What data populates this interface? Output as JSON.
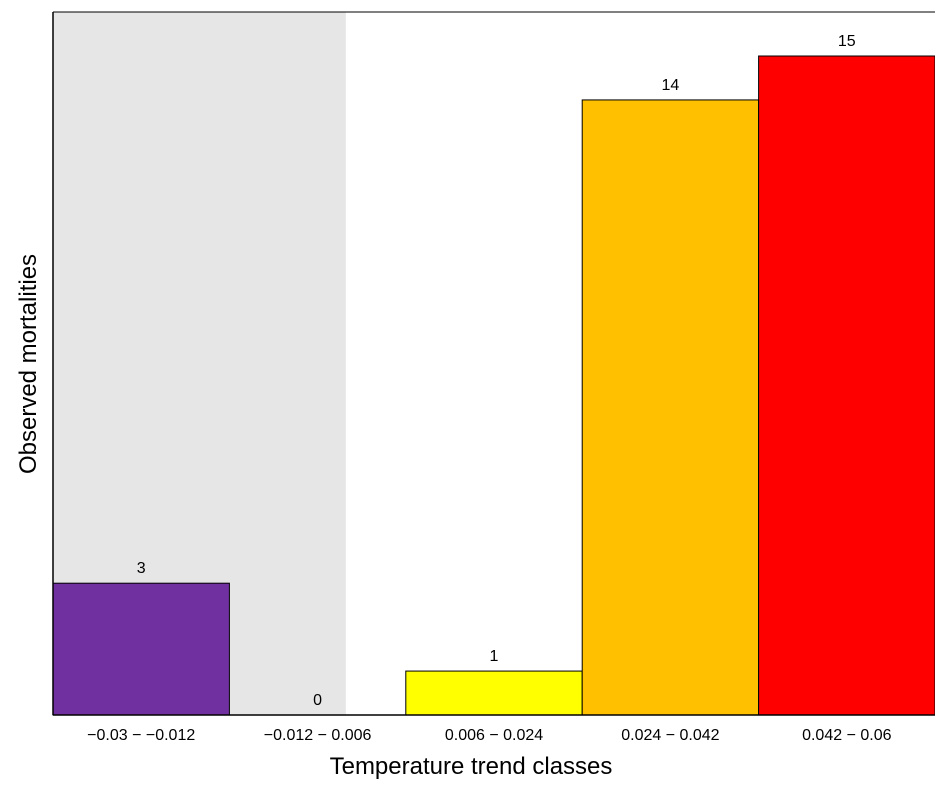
{
  "chart_data": {
    "type": "bar",
    "categories": [
      "−0.03  −  −0.012",
      "−0.012  −  0.006",
      "0.006  −  0.024",
      "0.024  −  0.042",
      "0.042  −  0.06"
    ],
    "values": [
      3,
      0,
      1,
      14,
      15
    ],
    "data_labels": [
      "3",
      "0",
      "1",
      "14",
      "15"
    ],
    "colors": [
      "#7030A0",
      "#E6E6E6",
      "#FFFF00",
      "#FFC000",
      "#FF0000"
    ],
    "bar_outline": "#000000",
    "shaded_region": {
      "category_range": [
        0,
        1
      ],
      "color": "#E6E6E6"
    },
    "xlabel": "Temperature trend classes",
    "ylabel": "Observed mortalities",
    "ylim": [
      0,
      15
    ],
    "grid": false,
    "legend": "none"
  }
}
